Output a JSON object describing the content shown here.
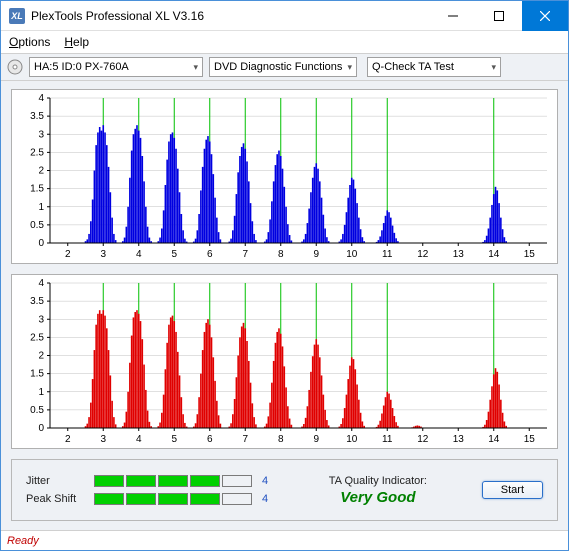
{
  "window": {
    "title": "PlexTools Professional XL V3.16",
    "icon_text": "XL"
  },
  "menu": {
    "options": "Options",
    "help": "Help"
  },
  "toolbar": {
    "drive": "HA:5 ID:0   PX-760A",
    "category": "DVD Diagnostic Functions",
    "test": "Q-Check TA Test"
  },
  "chart_common": {
    "ylim": [
      0,
      4
    ],
    "yticks": [
      0,
      0.5,
      1,
      1.5,
      2,
      2.5,
      3,
      3.5,
      4
    ],
    "xlim": [
      1.5,
      15.5
    ],
    "xticks": [
      2,
      3,
      4,
      5,
      6,
      7,
      8,
      9,
      10,
      11,
      12,
      13,
      14,
      15
    ],
    "green_lines": [
      3,
      4,
      5,
      6,
      7,
      8,
      9,
      10,
      11,
      14
    ],
    "bg": "#ffffff",
    "axis_color": "#000000",
    "grid_color": "#c0c0c0",
    "green": "#00c000",
    "tick_fontsize": 10
  },
  "chart1": {
    "color": "#0000e0",
    "bars": [
      [
        2.5,
        0.05
      ],
      [
        2.55,
        0.1
      ],
      [
        2.6,
        0.25
      ],
      [
        2.65,
        0.6
      ],
      [
        2.7,
        1.2
      ],
      [
        2.75,
        2.0
      ],
      [
        2.8,
        2.7
      ],
      [
        2.85,
        3.05
      ],
      [
        2.9,
        3.2
      ],
      [
        2.95,
        3.1
      ],
      [
        3.0,
        3.25
      ],
      [
        3.05,
        3.05
      ],
      [
        3.1,
        2.7
      ],
      [
        3.15,
        2.1
      ],
      [
        3.2,
        1.4
      ],
      [
        3.25,
        0.7
      ],
      [
        3.3,
        0.25
      ],
      [
        3.35,
        0.08
      ],
      [
        3.55,
        0.05
      ],
      [
        3.6,
        0.15
      ],
      [
        3.65,
        0.45
      ],
      [
        3.7,
        1.0
      ],
      [
        3.75,
        1.8
      ],
      [
        3.8,
        2.55
      ],
      [
        3.85,
        3.0
      ],
      [
        3.9,
        3.15
      ],
      [
        3.95,
        3.25
      ],
      [
        4.0,
        3.1
      ],
      [
        4.05,
        2.9
      ],
      [
        4.1,
        2.4
      ],
      [
        4.15,
        1.7
      ],
      [
        4.2,
        1.0
      ],
      [
        4.25,
        0.45
      ],
      [
        4.3,
        0.15
      ],
      [
        4.35,
        0.05
      ],
      [
        4.55,
        0.05
      ],
      [
        4.6,
        0.15
      ],
      [
        4.65,
        0.4
      ],
      [
        4.7,
        0.9
      ],
      [
        4.75,
        1.6
      ],
      [
        4.8,
        2.3
      ],
      [
        4.85,
        2.8
      ],
      [
        4.9,
        3.0
      ],
      [
        4.95,
        3.05
      ],
      [
        5.0,
        2.9
      ],
      [
        5.05,
        2.6
      ],
      [
        5.1,
        2.05
      ],
      [
        5.15,
        1.4
      ],
      [
        5.2,
        0.8
      ],
      [
        5.25,
        0.35
      ],
      [
        5.3,
        0.12
      ],
      [
        5.35,
        0.04
      ],
      [
        5.55,
        0.04
      ],
      [
        5.6,
        0.12
      ],
      [
        5.65,
        0.35
      ],
      [
        5.7,
        0.8
      ],
      [
        5.75,
        1.45
      ],
      [
        5.8,
        2.1
      ],
      [
        5.85,
        2.6
      ],
      [
        5.9,
        2.85
      ],
      [
        5.95,
        2.95
      ],
      [
        6.0,
        2.8
      ],
      [
        6.05,
        2.45
      ],
      [
        6.1,
        1.9
      ],
      [
        6.15,
        1.25
      ],
      [
        6.2,
        0.7
      ],
      [
        6.25,
        0.3
      ],
      [
        6.3,
        0.1
      ],
      [
        6.55,
        0.04
      ],
      [
        6.6,
        0.12
      ],
      [
        6.65,
        0.35
      ],
      [
        6.7,
        0.75
      ],
      [
        6.75,
        1.35
      ],
      [
        6.8,
        1.95
      ],
      [
        6.85,
        2.4
      ],
      [
        6.9,
        2.65
      ],
      [
        6.95,
        2.75
      ],
      [
        7.0,
        2.6
      ],
      [
        7.05,
        2.25
      ],
      [
        7.1,
        1.7
      ],
      [
        7.15,
        1.1
      ],
      [
        7.2,
        0.6
      ],
      [
        7.25,
        0.25
      ],
      [
        7.3,
        0.08
      ],
      [
        7.55,
        0.04
      ],
      [
        7.6,
        0.1
      ],
      [
        7.65,
        0.3
      ],
      [
        7.7,
        0.65
      ],
      [
        7.75,
        1.15
      ],
      [
        7.8,
        1.7
      ],
      [
        7.85,
        2.15
      ],
      [
        7.9,
        2.45
      ],
      [
        7.95,
        2.55
      ],
      [
        8.0,
        2.4
      ],
      [
        8.05,
        2.05
      ],
      [
        8.1,
        1.55
      ],
      [
        8.15,
        1.0
      ],
      [
        8.2,
        0.52
      ],
      [
        8.25,
        0.22
      ],
      [
        8.3,
        0.07
      ],
      [
        8.6,
        0.04
      ],
      [
        8.65,
        0.1
      ],
      [
        8.7,
        0.25
      ],
      [
        8.75,
        0.55
      ],
      [
        8.8,
        0.95
      ],
      [
        8.85,
        1.4
      ],
      [
        8.9,
        1.8
      ],
      [
        8.95,
        2.1
      ],
      [
        9.0,
        2.2
      ],
      [
        9.05,
        2.05
      ],
      [
        9.1,
        1.7
      ],
      [
        9.15,
        1.25
      ],
      [
        9.2,
        0.78
      ],
      [
        9.25,
        0.4
      ],
      [
        9.3,
        0.16
      ],
      [
        9.35,
        0.05
      ],
      [
        9.65,
        0.04
      ],
      [
        9.7,
        0.1
      ],
      [
        9.75,
        0.25
      ],
      [
        9.8,
        0.5
      ],
      [
        9.85,
        0.85
      ],
      [
        9.9,
        1.25
      ],
      [
        9.95,
        1.6
      ],
      [
        10.0,
        1.8
      ],
      [
        10.05,
        1.75
      ],
      [
        10.1,
        1.5
      ],
      [
        10.15,
        1.1
      ],
      [
        10.2,
        0.7
      ],
      [
        10.25,
        0.38
      ],
      [
        10.3,
        0.16
      ],
      [
        10.35,
        0.05
      ],
      [
        10.7,
        0.03
      ],
      [
        10.75,
        0.08
      ],
      [
        10.8,
        0.18
      ],
      [
        10.85,
        0.35
      ],
      [
        10.9,
        0.55
      ],
      [
        10.95,
        0.75
      ],
      [
        11.0,
        0.9
      ],
      [
        11.05,
        0.85
      ],
      [
        11.1,
        0.7
      ],
      [
        11.15,
        0.48
      ],
      [
        11.2,
        0.28
      ],
      [
        11.25,
        0.13
      ],
      [
        11.3,
        0.05
      ],
      [
        13.7,
        0.03
      ],
      [
        13.75,
        0.08
      ],
      [
        13.8,
        0.2
      ],
      [
        13.85,
        0.4
      ],
      [
        13.9,
        0.7
      ],
      [
        13.95,
        1.05
      ],
      [
        14.0,
        1.35
      ],
      [
        14.05,
        1.55
      ],
      [
        14.1,
        1.45
      ],
      [
        14.15,
        1.1
      ],
      [
        14.2,
        0.7
      ],
      [
        14.25,
        0.38
      ],
      [
        14.3,
        0.16
      ],
      [
        14.35,
        0.05
      ]
    ]
  },
  "chart2": {
    "color": "#e00000",
    "bars": [
      [
        2.5,
        0.05
      ],
      [
        2.55,
        0.12
      ],
      [
        2.6,
        0.3
      ],
      [
        2.65,
        0.7
      ],
      [
        2.7,
        1.35
      ],
      [
        2.75,
        2.15
      ],
      [
        2.8,
        2.85
      ],
      [
        2.85,
        3.15
      ],
      [
        2.9,
        3.25
      ],
      [
        2.95,
        3.15
      ],
      [
        3.0,
        3.25
      ],
      [
        3.05,
        3.1
      ],
      [
        3.1,
        2.75
      ],
      [
        3.15,
        2.15
      ],
      [
        3.2,
        1.45
      ],
      [
        3.25,
        0.75
      ],
      [
        3.3,
        0.3
      ],
      [
        3.35,
        0.1
      ],
      [
        3.55,
        0.05
      ],
      [
        3.6,
        0.15
      ],
      [
        3.65,
        0.45
      ],
      [
        3.7,
        1.0
      ],
      [
        3.75,
        1.8
      ],
      [
        3.8,
        2.55
      ],
      [
        3.85,
        3.05
      ],
      [
        3.9,
        3.2
      ],
      [
        3.95,
        3.25
      ],
      [
        4.0,
        3.15
      ],
      [
        4.05,
        2.95
      ],
      [
        4.1,
        2.45
      ],
      [
        4.15,
        1.75
      ],
      [
        4.2,
        1.05
      ],
      [
        4.25,
        0.48
      ],
      [
        4.3,
        0.17
      ],
      [
        4.35,
        0.05
      ],
      [
        4.55,
        0.05
      ],
      [
        4.6,
        0.15
      ],
      [
        4.65,
        0.42
      ],
      [
        4.7,
        0.92
      ],
      [
        4.75,
        1.62
      ],
      [
        4.8,
        2.35
      ],
      [
        4.85,
        2.85
      ],
      [
        4.9,
        3.05
      ],
      [
        4.95,
        3.1
      ],
      [
        5.0,
        2.95
      ],
      [
        5.05,
        2.65
      ],
      [
        5.1,
        2.1
      ],
      [
        5.15,
        1.45
      ],
      [
        5.2,
        0.85
      ],
      [
        5.25,
        0.38
      ],
      [
        5.3,
        0.14
      ],
      [
        5.35,
        0.04
      ],
      [
        5.55,
        0.04
      ],
      [
        5.6,
        0.13
      ],
      [
        5.65,
        0.38
      ],
      [
        5.7,
        0.85
      ],
      [
        5.75,
        1.5
      ],
      [
        5.8,
        2.15
      ],
      [
        5.85,
        2.65
      ],
      [
        5.9,
        2.9
      ],
      [
        5.95,
        3.0
      ],
      [
        6.0,
        2.85
      ],
      [
        6.05,
        2.5
      ],
      [
        6.1,
        1.95
      ],
      [
        6.15,
        1.3
      ],
      [
        6.2,
        0.75
      ],
      [
        6.25,
        0.35
      ],
      [
        6.3,
        0.12
      ],
      [
        6.55,
        0.04
      ],
      [
        6.6,
        0.13
      ],
      [
        6.65,
        0.38
      ],
      [
        6.7,
        0.8
      ],
      [
        6.75,
        1.4
      ],
      [
        6.8,
        2.0
      ],
      [
        6.85,
        2.5
      ],
      [
        6.9,
        2.8
      ],
      [
        6.95,
        2.9
      ],
      [
        7.0,
        2.75
      ],
      [
        7.05,
        2.4
      ],
      [
        7.1,
        1.85
      ],
      [
        7.15,
        1.25
      ],
      [
        7.2,
        0.68
      ],
      [
        7.25,
        0.3
      ],
      [
        7.3,
        0.1
      ],
      [
        7.55,
        0.04
      ],
      [
        7.6,
        0.12
      ],
      [
        7.65,
        0.32
      ],
      [
        7.7,
        0.7
      ],
      [
        7.75,
        1.25
      ],
      [
        7.8,
        1.85
      ],
      [
        7.85,
        2.35
      ],
      [
        7.9,
        2.65
      ],
      [
        7.95,
        2.75
      ],
      [
        8.0,
        2.6
      ],
      [
        8.05,
        2.25
      ],
      [
        8.1,
        1.7
      ],
      [
        8.15,
        1.12
      ],
      [
        8.2,
        0.6
      ],
      [
        8.25,
        0.26
      ],
      [
        8.3,
        0.09
      ],
      [
        8.6,
        0.04
      ],
      [
        8.65,
        0.11
      ],
      [
        8.7,
        0.28
      ],
      [
        8.75,
        0.6
      ],
      [
        8.8,
        1.05
      ],
      [
        8.85,
        1.55
      ],
      [
        8.9,
        1.98
      ],
      [
        8.95,
        2.3
      ],
      [
        9.0,
        2.45
      ],
      [
        9.05,
        2.3
      ],
      [
        9.1,
        1.95
      ],
      [
        9.15,
        1.45
      ],
      [
        9.2,
        0.92
      ],
      [
        9.25,
        0.5
      ],
      [
        9.3,
        0.22
      ],
      [
        9.35,
        0.07
      ],
      [
        9.65,
        0.04
      ],
      [
        9.7,
        0.11
      ],
      [
        9.75,
        0.27
      ],
      [
        9.8,
        0.55
      ],
      [
        9.85,
        0.92
      ],
      [
        9.9,
        1.35
      ],
      [
        9.95,
        1.72
      ],
      [
        10.0,
        1.95
      ],
      [
        10.05,
        1.9
      ],
      [
        10.1,
        1.62
      ],
      [
        10.15,
        1.2
      ],
      [
        10.2,
        0.78
      ],
      [
        10.25,
        0.42
      ],
      [
        10.3,
        0.18
      ],
      [
        10.35,
        0.06
      ],
      [
        10.7,
        0.03
      ],
      [
        10.75,
        0.09
      ],
      [
        10.8,
        0.2
      ],
      [
        10.85,
        0.4
      ],
      [
        10.9,
        0.62
      ],
      [
        10.95,
        0.85
      ],
      [
        11.0,
        1.0
      ],
      [
        11.05,
        0.95
      ],
      [
        11.1,
        0.78
      ],
      [
        11.15,
        0.55
      ],
      [
        11.2,
        0.33
      ],
      [
        11.25,
        0.16
      ],
      [
        11.3,
        0.06
      ],
      [
        11.7,
        0.02
      ],
      [
        11.75,
        0.04
      ],
      [
        11.8,
        0.06
      ],
      [
        11.85,
        0.07
      ],
      [
        11.9,
        0.06
      ],
      [
        11.95,
        0.04
      ],
      [
        13.7,
        0.03
      ],
      [
        13.75,
        0.09
      ],
      [
        13.8,
        0.22
      ],
      [
        13.85,
        0.45
      ],
      [
        13.9,
        0.78
      ],
      [
        13.95,
        1.15
      ],
      [
        14.0,
        1.48
      ],
      [
        14.05,
        1.65
      ],
      [
        14.1,
        1.55
      ],
      [
        14.15,
        1.2
      ],
      [
        14.2,
        0.78
      ],
      [
        14.25,
        0.42
      ],
      [
        14.3,
        0.18
      ],
      [
        14.35,
        0.06
      ]
    ]
  },
  "bottom": {
    "jitter_label": "Jitter",
    "peakshift_label": "Peak Shift",
    "jitter": {
      "filled": 4,
      "total": 5,
      "value": "4"
    },
    "peakshift": {
      "filled": 4,
      "total": 5,
      "value": "4"
    },
    "quality_label": "TA Quality Indicator:",
    "quality_value": "Very Good",
    "start": "Start"
  },
  "status": {
    "text": "Ready"
  }
}
